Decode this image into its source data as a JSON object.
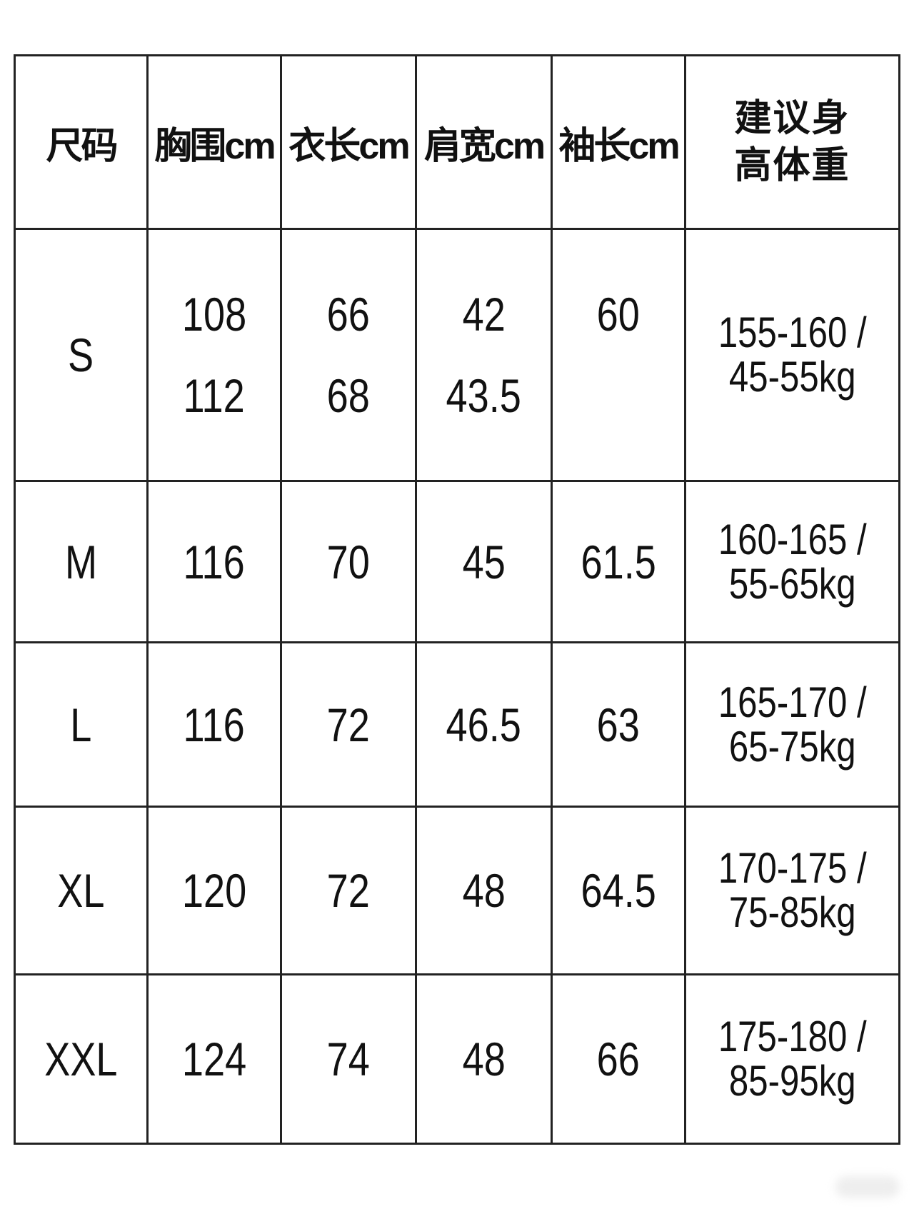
{
  "headers": [
    "尺码",
    "胸围cm",
    "衣长cm",
    "肩宽cm",
    "袖长cm",
    [
      "建议身",
      "高体重"
    ]
  ],
  "rows": [
    {
      "size": "S",
      "chest": [
        "108",
        "112"
      ],
      "length": [
        "66",
        "68"
      ],
      "shoulder": [
        "42",
        "43.5"
      ],
      "sleeve": [
        "60"
      ],
      "recommend": [
        "155-160 /",
        "45-55kg"
      ]
    },
    {
      "size": "M",
      "chest": [
        "116"
      ],
      "length": [
        "70"
      ],
      "shoulder": [
        "45"
      ],
      "sleeve": [
        "61.5"
      ],
      "recommend": [
        "160-165 /",
        "55-65kg"
      ]
    },
    {
      "size": "L",
      "chest": [
        "116"
      ],
      "length": [
        "72"
      ],
      "shoulder": [
        "46.5"
      ],
      "sleeve": [
        "63"
      ],
      "recommend": [
        "165-170 /",
        "65-75kg"
      ]
    },
    {
      "size": "XL",
      "chest": [
        "120"
      ],
      "length": [
        "72"
      ],
      "shoulder": [
        "48"
      ],
      "sleeve": [
        "64.5"
      ],
      "recommend": [
        "170-175 /",
        "75-85kg"
      ]
    },
    {
      "size": "XXL",
      "chest": [
        "124"
      ],
      "length": [
        "74"
      ],
      "shoulder": [
        "48"
      ],
      "sleeve": [
        "66"
      ],
      "recommend": [
        "175-180 /",
        "85-95kg"
      ]
    }
  ]
}
